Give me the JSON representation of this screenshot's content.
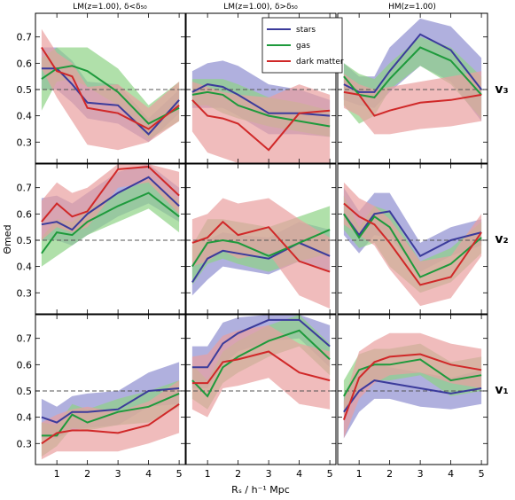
{
  "figure": {
    "column_titles": [
      "LM(z=1.00), δ<δ₅₀",
      "LM(z=1.00), δ>δ₅₀",
      "HM(z=1.00)"
    ],
    "row_labels": [
      "v₃",
      "v₂",
      "v₁"
    ],
    "xlabel": "Rₛ / h⁻¹ Mpc",
    "ylabel": "Θmed"
  },
  "legend": [
    {
      "name": "stars",
      "color": "#3b3b9b",
      "band": "#8e8ed0"
    },
    {
      "name": "gas",
      "color": "#1e9a3c",
      "band": "#8fd386"
    },
    {
      "name": "dark matter",
      "color": "#d02828",
      "band": "#eaa0a0"
    }
  ],
  "chart_data": {
    "type": "line",
    "x": [
      0.5,
      1,
      1.5,
      2,
      3,
      4,
      5
    ],
    "xlim": [
      0.3,
      5.2
    ],
    "xticks": [
      1,
      2,
      3,
      4,
      5
    ],
    "ylim": [
      0.22,
      0.79
    ],
    "yticks": [
      0.3,
      0.4,
      0.5,
      0.6,
      0.7
    ],
    "reference_line": 0.5,
    "panels": [
      {
        "row": 0,
        "col": 0,
        "series": [
          {
            "name": "stars",
            "values": [
              0.58,
              0.58,
              0.52,
              0.45,
              0.44,
              0.33,
              0.46
            ],
            "lower": [
              0.5,
              0.5,
              0.45,
              0.39,
              0.37,
              0.3,
              0.41
            ],
            "upper": [
              0.66,
              0.66,
              0.61,
              0.53,
              0.52,
              0.39,
              0.5
            ]
          },
          {
            "name": "gas",
            "values": [
              0.54,
              0.58,
              0.59,
              0.57,
              0.49,
              0.37,
              0.43
            ],
            "lower": [
              0.42,
              0.53,
              0.54,
              0.51,
              0.44,
              0.31,
              0.38
            ],
            "upper": [
              0.62,
              0.66,
              0.66,
              0.66,
              0.58,
              0.44,
              0.53
            ]
          },
          {
            "name": "dark matter",
            "values": [
              0.66,
              0.57,
              0.55,
              0.43,
              0.41,
              0.35,
              0.44
            ],
            "lower": [
              0.58,
              0.47,
              0.38,
              0.29,
              0.27,
              0.3,
              0.38
            ],
            "upper": [
              0.73,
              0.64,
              0.6,
              0.51,
              0.52,
              0.43,
              0.53
            ]
          }
        ]
      },
      {
        "row": 0,
        "col": 1,
        "series": [
          {
            "name": "stars",
            "values": [
              0.49,
              0.52,
              0.51,
              0.48,
              0.41,
              0.41,
              0.4
            ],
            "lower": [
              0.43,
              0.43,
              0.43,
              0.4,
              0.33,
              0.33,
              0.32
            ],
            "upper": [
              0.57,
              0.6,
              0.61,
              0.59,
              0.52,
              0.5,
              0.46
            ]
          },
          {
            "name": "gas",
            "values": [
              0.48,
              0.49,
              0.48,
              0.44,
              0.4,
              0.38,
              0.36
            ],
            "lower": [
              0.44,
              0.44,
              0.41,
              0.39,
              0.36,
              0.34,
              0.32
            ],
            "upper": [
              0.54,
              0.54,
              0.54,
              0.52,
              0.47,
              0.45,
              0.42
            ]
          },
          {
            "name": "dark matter",
            "values": [
              0.46,
              0.4,
              0.39,
              0.37,
              0.27,
              0.41,
              0.42
            ],
            "lower": [
              0.34,
              0.26,
              0.24,
              0.22,
              0.22,
              0.22,
              0.22
            ],
            "upper": [
              0.53,
              0.51,
              0.49,
              0.48,
              0.47,
              0.52,
              0.48
            ]
          }
        ]
      },
      {
        "row": 0,
        "col": 2,
        "series": [
          {
            "name": "stars",
            "values": [
              0.52,
              0.49,
              0.49,
              0.57,
              0.71,
              0.65,
              0.5
            ],
            "lower": [
              0.46,
              0.44,
              0.43,
              0.49,
              0.59,
              0.53,
              0.38
            ],
            "upper": [
              0.6,
              0.55,
              0.55,
              0.66,
              0.77,
              0.74,
              0.62
            ]
          },
          {
            "name": "gas",
            "values": [
              0.55,
              0.48,
              0.47,
              0.54,
              0.66,
              0.61,
              0.48
            ],
            "lower": [
              0.44,
              0.37,
              0.4,
              0.5,
              0.59,
              0.52,
              0.39
            ],
            "upper": [
              0.6,
              0.56,
              0.54,
              0.6,
              0.7,
              0.66,
              0.55
            ]
          },
          {
            "name": "dark matter",
            "values": [
              0.49,
              0.48,
              0.4,
              0.42,
              0.45,
              0.46,
              0.48
            ],
            "lower": [
              0.43,
              0.4,
              0.33,
              0.33,
              0.35,
              0.36,
              0.38
            ],
            "upper": [
              0.56,
              0.52,
              0.5,
              0.51,
              0.53,
              0.55,
              0.57
            ]
          }
        ]
      },
      {
        "row": 1,
        "col": 0,
        "series": [
          {
            "name": "stars",
            "values": [
              0.56,
              0.57,
              0.54,
              0.6,
              0.68,
              0.74,
              0.63
            ],
            "lower": [
              0.5,
              0.5,
              0.48,
              0.52,
              0.59,
              0.64,
              0.57
            ],
            "upper": [
              0.66,
              0.67,
              0.64,
              0.68,
              0.76,
              0.79,
              0.7
            ]
          },
          {
            "name": "gas",
            "values": [
              0.45,
              0.53,
              0.52,
              0.57,
              0.63,
              0.68,
              0.59
            ],
            "lower": [
              0.4,
              0.44,
              0.48,
              0.52,
              0.57,
              0.62,
              0.53
            ],
            "upper": [
              0.51,
              0.58,
              0.57,
              0.62,
              0.68,
              0.73,
              0.65
            ]
          },
          {
            "name": "dark matter",
            "values": [
              0.57,
              0.64,
              0.59,
              0.61,
              0.77,
              0.78,
              0.67
            ],
            "lower": [
              0.5,
              0.55,
              0.53,
              0.55,
              0.7,
              0.72,
              0.6
            ],
            "upper": [
              0.65,
              0.72,
              0.68,
              0.7,
              0.79,
              0.79,
              0.76
            ]
          }
        ]
      },
      {
        "row": 1,
        "col": 1,
        "series": [
          {
            "name": "stars",
            "values": [
              0.34,
              0.43,
              0.46,
              0.45,
              0.43,
              0.49,
              0.44
            ],
            "lower": [
              0.29,
              0.35,
              0.4,
              0.39,
              0.37,
              0.42,
              0.38
            ],
            "upper": [
              0.41,
              0.5,
              0.53,
              0.52,
              0.51,
              0.57,
              0.54
            ]
          },
          {
            "name": "gas",
            "values": [
              0.4,
              0.49,
              0.5,
              0.49,
              0.44,
              0.49,
              0.54
            ],
            "lower": [
              0.33,
              0.41,
              0.43,
              0.41,
              0.38,
              0.42,
              0.45
            ],
            "upper": [
              0.48,
              0.58,
              0.58,
              0.57,
              0.55,
              0.59,
              0.63
            ]
          },
          {
            "name": "dark matter",
            "values": [
              0.49,
              0.51,
              0.57,
              0.52,
              0.55,
              0.42,
              0.38
            ],
            "lower": [
              0.4,
              0.42,
              0.46,
              0.43,
              0.45,
              0.29,
              0.24
            ],
            "upper": [
              0.58,
              0.6,
              0.66,
              0.64,
              0.66,
              0.58,
              0.51
            ]
          }
        ]
      },
      {
        "row": 1,
        "col": 2,
        "series": [
          {
            "name": "stars",
            "values": [
              0.6,
              0.52,
              0.6,
              0.61,
              0.44,
              0.5,
              0.53
            ],
            "lower": [
              0.52,
              0.45,
              0.52,
              0.51,
              0.38,
              0.44,
              0.48
            ],
            "upper": [
              0.7,
              0.61,
              0.68,
              0.68,
              0.49,
              0.55,
              0.58
            ]
          },
          {
            "name": "gas",
            "values": [
              0.6,
              0.51,
              0.59,
              0.55,
              0.36,
              0.41,
              0.51
            ],
            "lower": [
              0.54,
              0.47,
              0.49,
              0.4,
              0.3,
              0.34,
              0.45
            ],
            "upper": [
              0.67,
              0.55,
              0.63,
              0.61,
              0.42,
              0.47,
              0.57
            ]
          },
          {
            "name": "dark matter",
            "values": [
              0.64,
              0.59,
              0.56,
              0.49,
              0.33,
              0.36,
              0.53
            ],
            "lower": [
              0.56,
              0.52,
              0.48,
              0.39,
              0.25,
              0.28,
              0.44
            ],
            "upper": [
              0.72,
              0.66,
              0.63,
              0.58,
              0.42,
              0.44,
              0.6
            ]
          }
        ]
      },
      {
        "row": 2,
        "col": 0,
        "series": [
          {
            "name": "stars",
            "values": [
              0.4,
              0.38,
              0.42,
              0.42,
              0.43,
              0.5,
              0.51
            ],
            "lower": [
              0.32,
              0.32,
              0.35,
              0.36,
              0.37,
              0.44,
              0.45
            ],
            "upper": [
              0.47,
              0.44,
              0.48,
              0.49,
              0.5,
              0.57,
              0.61
            ]
          },
          {
            "name": "gas",
            "values": [
              0.33,
              0.33,
              0.41,
              0.38,
              0.42,
              0.44,
              0.49
            ],
            "lower": [
              0.25,
              0.29,
              0.36,
              0.35,
              0.37,
              0.38,
              0.44
            ],
            "upper": [
              0.38,
              0.37,
              0.45,
              0.43,
              0.47,
              0.5,
              0.54
            ]
          },
          {
            "name": "dark matter",
            "values": [
              0.3,
              0.34,
              0.35,
              0.35,
              0.34,
              0.37,
              0.45
            ],
            "lower": [
              0.24,
              0.27,
              0.27,
              0.27,
              0.27,
              0.3,
              0.34
            ],
            "upper": [
              0.38,
              0.41,
              0.43,
              0.44,
              0.42,
              0.46,
              0.54
            ]
          }
        ]
      },
      {
        "row": 2,
        "col": 1,
        "series": [
          {
            "name": "stars",
            "values": [
              0.59,
              0.59,
              0.68,
              0.72,
              0.77,
              0.77,
              0.67
            ],
            "lower": [
              0.51,
              0.51,
              0.6,
              0.65,
              0.69,
              0.7,
              0.59
            ],
            "upper": [
              0.67,
              0.67,
              0.76,
              0.78,
              0.79,
              0.79,
              0.75
            ]
          },
          {
            "name": "gas",
            "values": [
              0.54,
              0.48,
              0.59,
              0.63,
              0.69,
              0.73,
              0.62
            ],
            "lower": [
              0.47,
              0.43,
              0.53,
              0.57,
              0.63,
              0.67,
              0.56
            ],
            "upper": [
              0.6,
              0.54,
              0.65,
              0.69,
              0.75,
              0.79,
              0.68
            ]
          },
          {
            "name": "dark matter",
            "values": [
              0.53,
              0.53,
              0.61,
              0.62,
              0.65,
              0.57,
              0.54
            ],
            "lower": [
              0.43,
              0.4,
              0.51,
              0.52,
              0.55,
              0.45,
              0.43
            ],
            "upper": [
              0.63,
              0.64,
              0.71,
              0.73,
              0.75,
              0.68,
              0.65
            ]
          }
        ]
      },
      {
        "row": 2,
        "col": 2,
        "series": [
          {
            "name": "stars",
            "values": [
              0.42,
              0.5,
              0.54,
              0.53,
              0.51,
              0.49,
              0.51
            ],
            "lower": [
              0.32,
              0.42,
              0.47,
              0.47,
              0.44,
              0.43,
              0.45
            ],
            "upper": [
              0.48,
              0.57,
              0.61,
              0.59,
              0.57,
              0.55,
              0.58
            ]
          },
          {
            "name": "gas",
            "values": [
              0.48,
              0.58,
              0.6,
              0.6,
              0.62,
              0.54,
              0.56
            ],
            "lower": [
              0.41,
              0.51,
              0.54,
              0.54,
              0.56,
              0.48,
              0.5
            ],
            "upper": [
              0.54,
              0.64,
              0.66,
              0.66,
              0.68,
              0.61,
              0.63
            ]
          },
          {
            "name": "dark matter",
            "values": [
              0.39,
              0.55,
              0.61,
              0.63,
              0.64,
              0.6,
              0.58
            ],
            "lower": [
              0.32,
              0.47,
              0.53,
              0.56,
              0.57,
              0.53,
              0.51
            ],
            "upper": [
              0.46,
              0.65,
              0.69,
              0.72,
              0.72,
              0.68,
              0.66
            ]
          }
        ]
      }
    ]
  }
}
